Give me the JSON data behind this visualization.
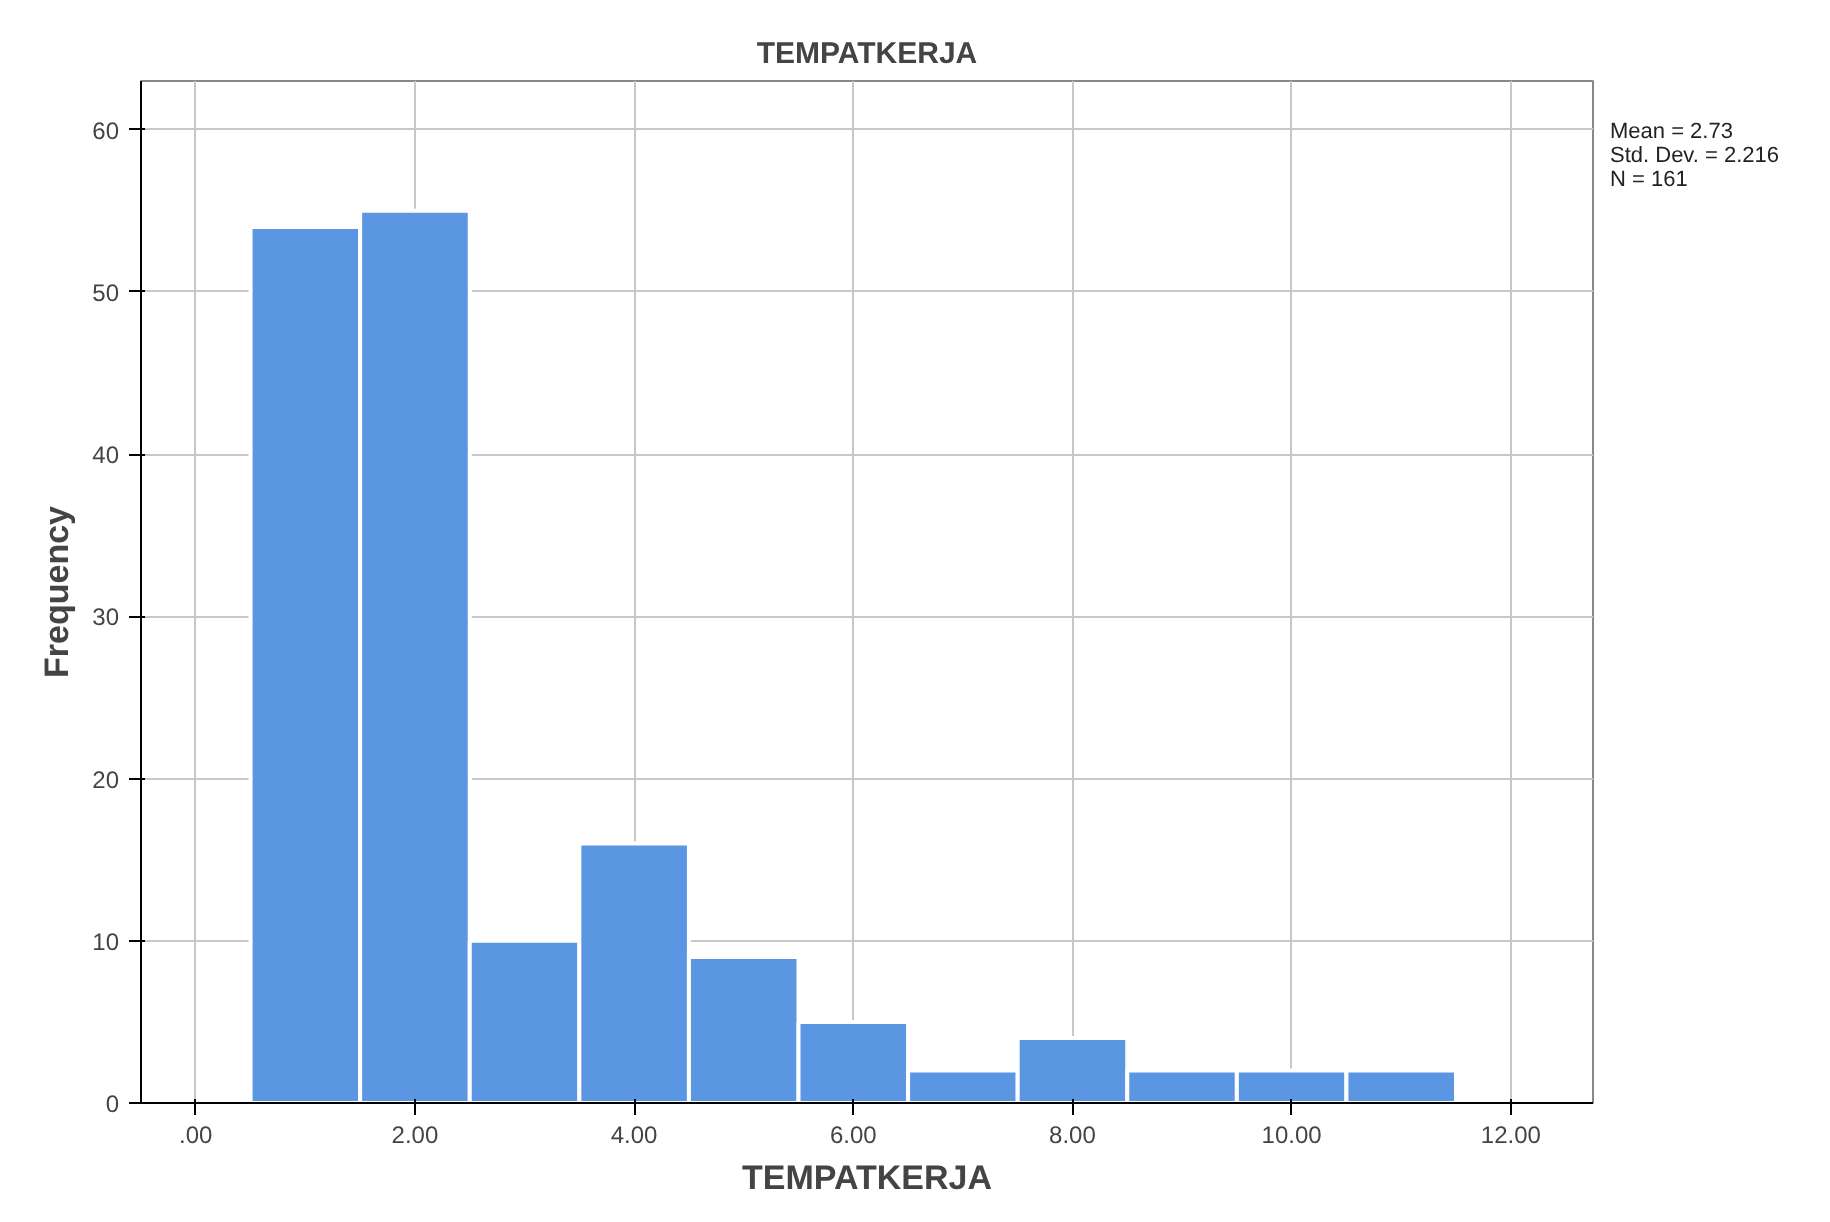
{
  "chart_data": {
    "type": "histogram",
    "title": "TEMPATKERJA",
    "xlabel": "TEMPATKERJA",
    "ylabel": "Frequency",
    "bins": [
      0.5,
      1.5,
      2.5,
      3.5,
      4.5,
      5.5,
      6.5,
      7.5,
      8.5,
      9.5,
      10.5,
      11.5
    ],
    "values": [
      54,
      55,
      10,
      16,
      9,
      5,
      2,
      4,
      2,
      2,
      2
    ],
    "color": "#5b96e3",
    "xlim": [
      -0.5,
      12.75
    ],
    "ylim": [
      0,
      63
    ],
    "xticks": [
      {
        "value": 0,
        "label": ".00"
      },
      {
        "value": 2,
        "label": "2.00"
      },
      {
        "value": 4,
        "label": "4.00"
      },
      {
        "value": 6,
        "label": "6.00"
      },
      {
        "value": 8,
        "label": "8.00"
      },
      {
        "value": 10,
        "label": "10.00"
      },
      {
        "value": 12,
        "label": "12.00"
      }
    ],
    "yticks": [
      0,
      10,
      20,
      30,
      40,
      50,
      60
    ],
    "grid": true,
    "annotations": [
      "Mean = 2.73",
      "Std. Dev. = 2.216",
      "N = 161"
    ]
  }
}
